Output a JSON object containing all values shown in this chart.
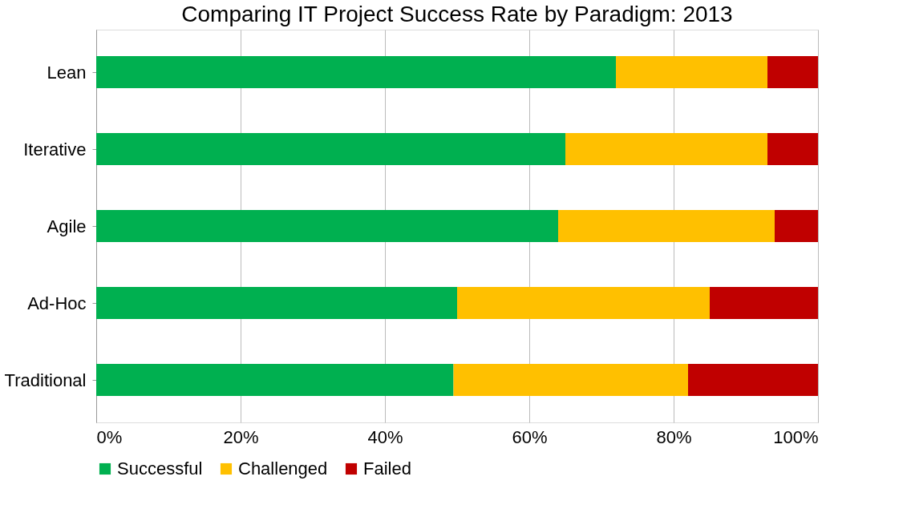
{
  "chart_data": {
    "type": "bar",
    "orientation": "horizontal",
    "stacked": true,
    "title": "Comparing IT Project Success Rate by Paradigm: 2013",
    "categories": [
      "Lean",
      "Iterative",
      "Agile",
      "Ad-Hoc",
      "Traditional"
    ],
    "series": [
      {
        "name": "Successful",
        "color": "#00b050",
        "values": [
          72,
          65,
          64,
          50,
          49.5
        ]
      },
      {
        "name": "Challenged",
        "color": "#ffc000",
        "values": [
          21,
          28,
          30,
          35,
          32.5
        ]
      },
      {
        "name": "Failed",
        "color": "#c00000",
        "values": [
          7,
          7,
          6,
          15,
          18
        ]
      }
    ],
    "xlim": [
      0,
      100
    ],
    "xticks": [
      {
        "value": 0,
        "label": "0%"
      },
      {
        "value": 20,
        "label": "20%"
      },
      {
        "value": 40,
        "label": "40%"
      },
      {
        "value": 60,
        "label": "60%"
      },
      {
        "value": 80,
        "label": "80%"
      },
      {
        "value": 100,
        "label": "100%"
      }
    ],
    "grid": "x",
    "legend": "bottom"
  }
}
